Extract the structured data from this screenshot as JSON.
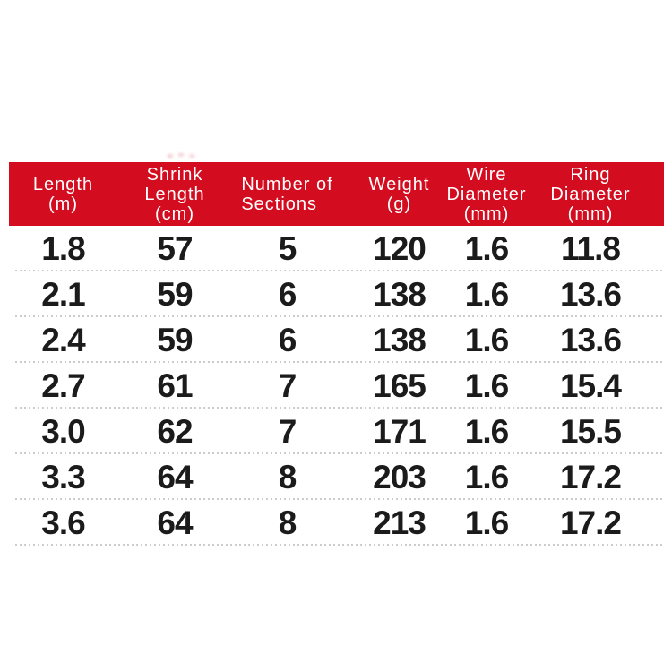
{
  "page": {
    "background_color": "#ffffff"
  },
  "table": {
    "header": {
      "background_color": "#d30d1f",
      "text_color": "#ffffff",
      "columns": [
        {
          "label": "Length\n(m)"
        },
        {
          "label": "Shrink\nLength\n(cm)"
        },
        {
          "label": "Number of\nSections"
        },
        {
          "label": "Weight\n(g)"
        },
        {
          "label": "Wire\nDiameter\n(mm)"
        },
        {
          "label": "Ring\nDiameter\n(mm)"
        }
      ]
    },
    "body_text_color": "#1b1b1b",
    "separator_color": "#cccccc",
    "rows": [
      {
        "cells": [
          "1.8",
          "57",
          "5",
          "120",
          "1.6",
          "11.8"
        ]
      },
      {
        "cells": [
          "2.1",
          "59",
          "6",
          "138",
          "1.6",
          "13.6"
        ]
      },
      {
        "cells": [
          "2.4",
          "59",
          "6",
          "138",
          "1.6",
          "13.6"
        ]
      },
      {
        "cells": [
          "2.7",
          "61",
          "7",
          "165",
          "1.6",
          "15.4"
        ]
      },
      {
        "cells": [
          "3.0",
          "62",
          "7",
          "171",
          "1.6",
          "15.5"
        ]
      },
      {
        "cells": [
          "3.3",
          "64",
          "8",
          "203",
          "1.6",
          "17.2"
        ]
      },
      {
        "cells": [
          "3.6",
          "64",
          "8",
          "213",
          "1.6",
          "17.2"
        ]
      }
    ]
  },
  "chart_data": {
    "type": "table",
    "columns": [
      "Length (m)",
      "Shrink Length (cm)",
      "Number of Sections",
      "Weight (g)",
      "Wire Diameter (mm)",
      "Ring Diameter (mm)"
    ],
    "rows": [
      [
        "1.8",
        "57",
        "5",
        "120",
        "1.6",
        "11.8"
      ],
      [
        "2.1",
        "59",
        "6",
        "138",
        "1.6",
        "13.6"
      ],
      [
        "2.4",
        "59",
        "6",
        "138",
        "1.6",
        "13.6"
      ],
      [
        "2.7",
        "61",
        "7",
        "165",
        "1.6",
        "15.4"
      ],
      [
        "3.0",
        "62",
        "7",
        "171",
        "1.6",
        "15.5"
      ],
      [
        "3.3",
        "64",
        "8",
        "203",
        "1.6",
        "17.2"
      ],
      [
        "3.6",
        "64",
        "8",
        "213",
        "1.6",
        "17.2"
      ]
    ],
    "layout": {
      "header_background": "#d30d1f",
      "header_text_color": "#ffffff",
      "row_separators": "dotted",
      "grid": "horizontal-only"
    }
  }
}
